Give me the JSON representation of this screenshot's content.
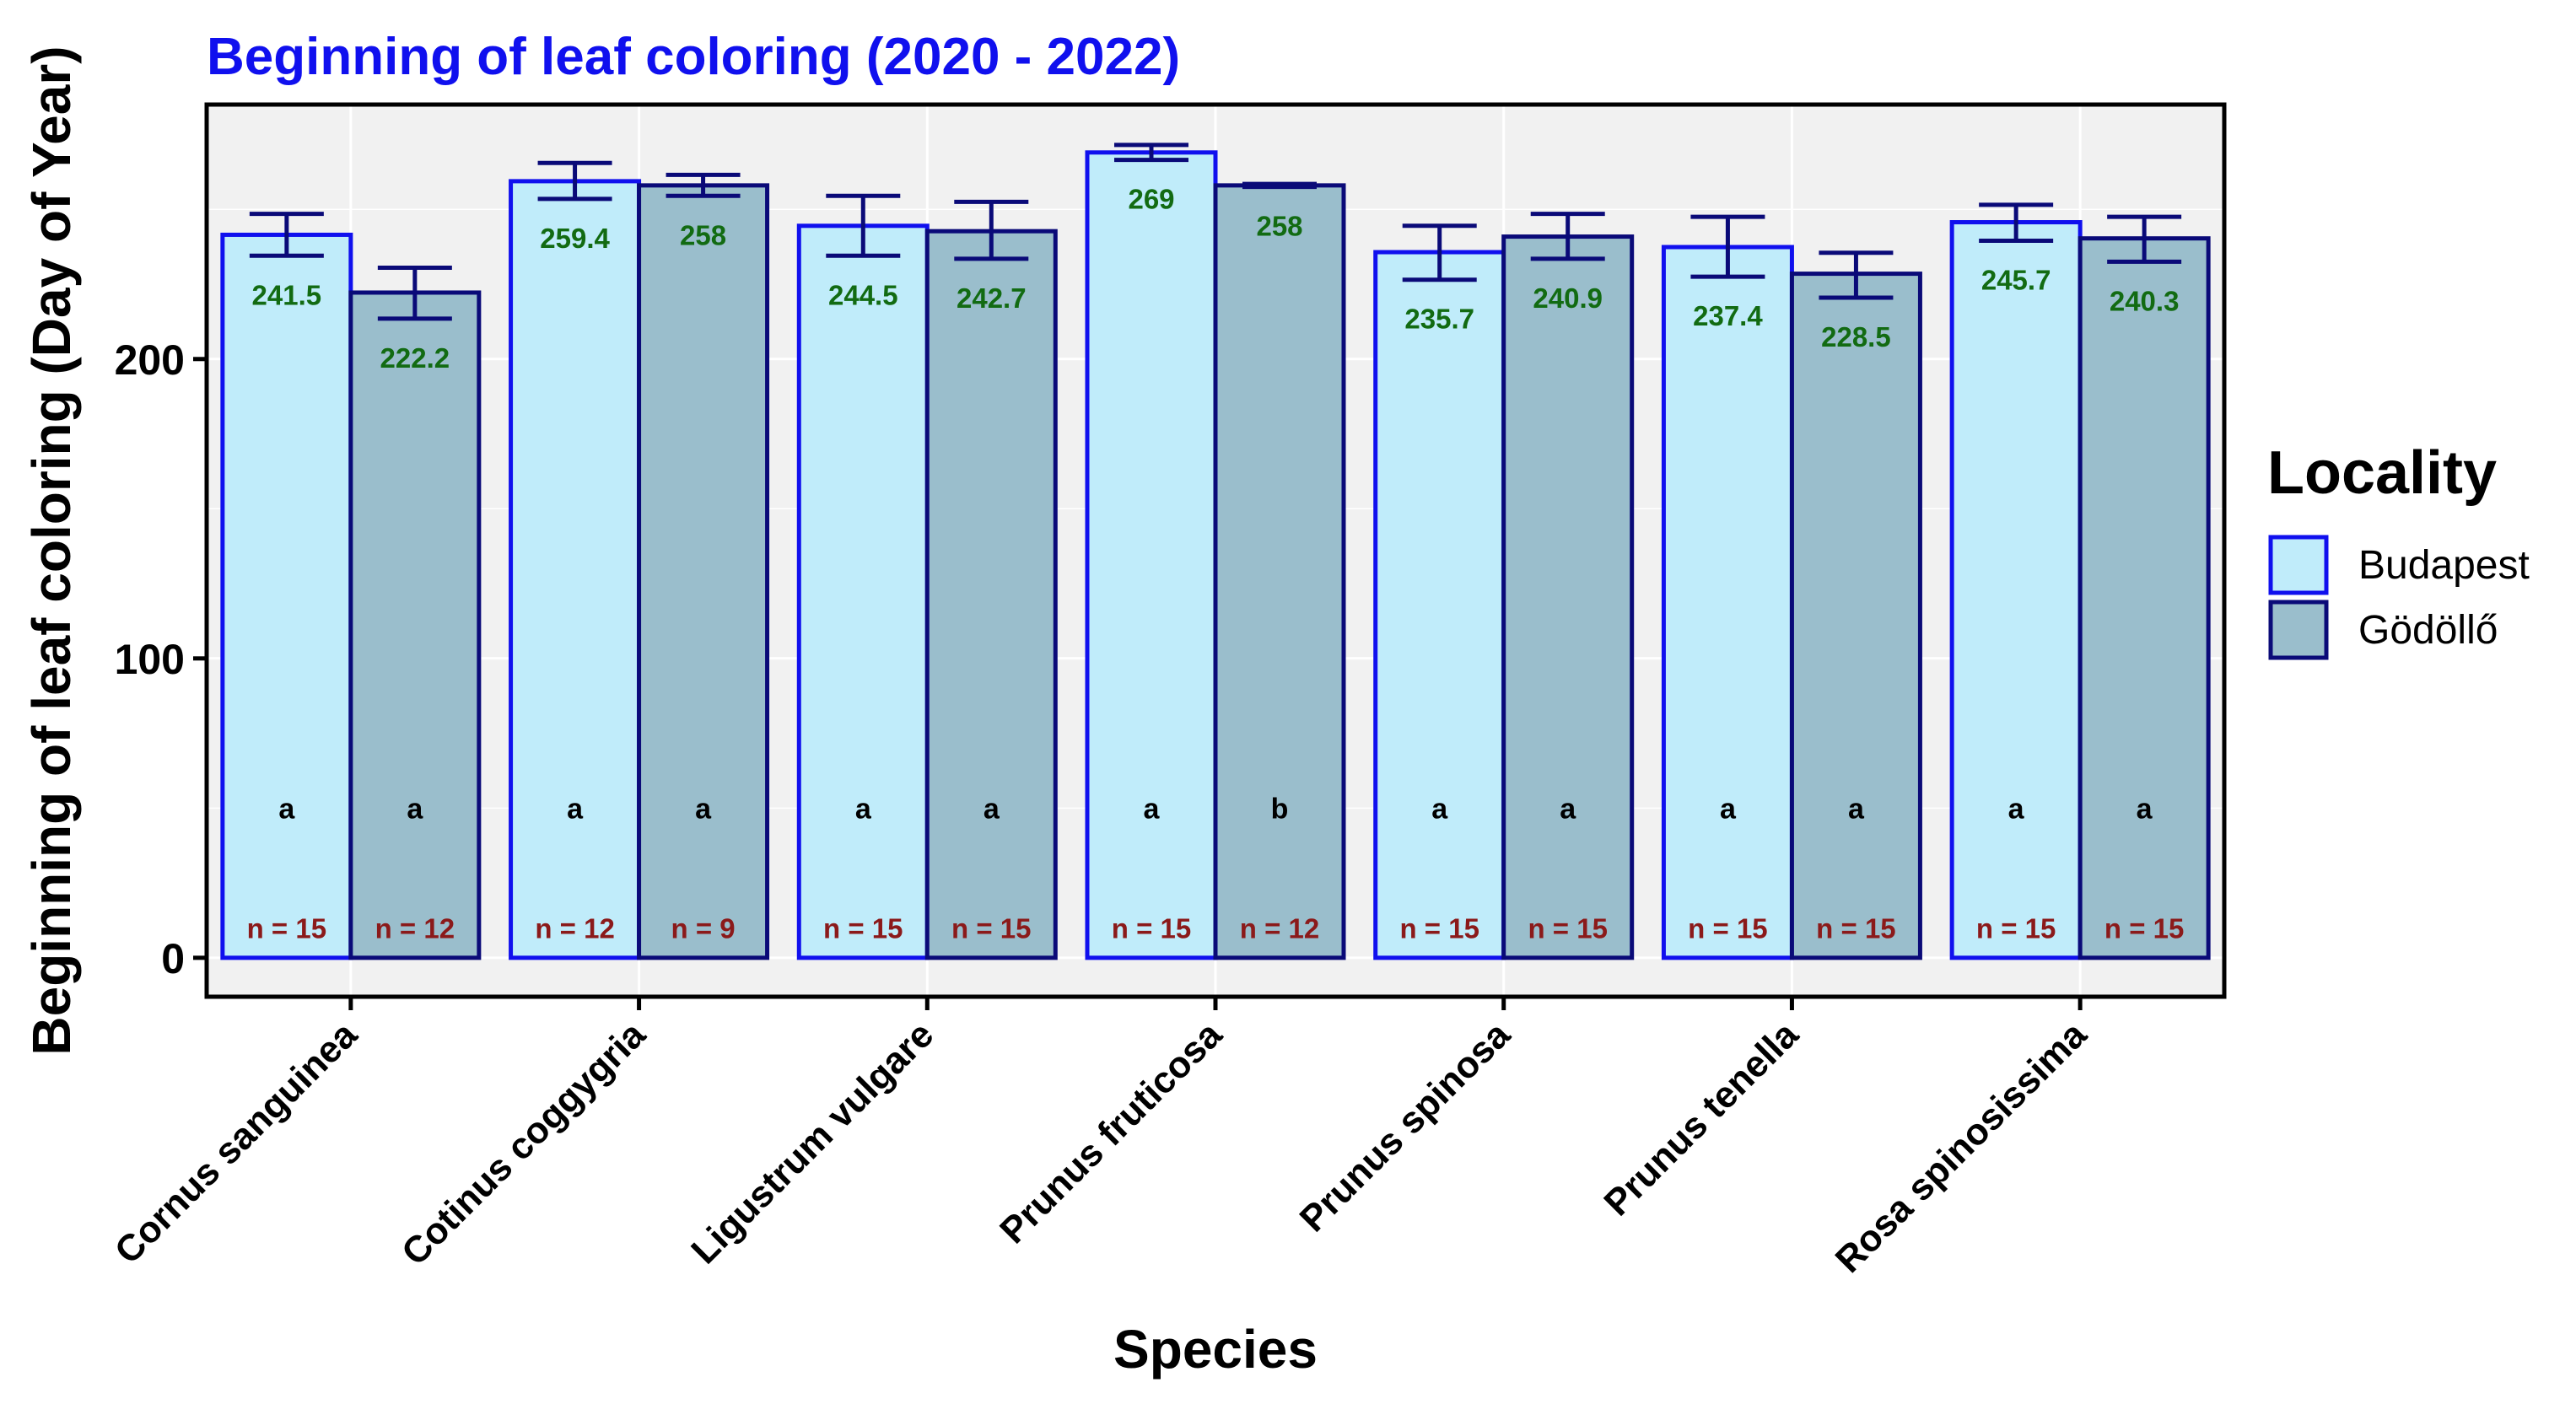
{
  "chart_data": {
    "type": "bar",
    "title": "Beginning of leaf coloring (2020 - 2022)",
    "xlabel": "Species",
    "ylabel": "Beginning of leaf coloring (Day of Year)",
    "ylim": [
      -13,
      285
    ],
    "yticks": [
      0,
      100,
      200
    ],
    "ytick_labels": [
      "0",
      "100",
      "200"
    ],
    "grid": true,
    "categories": [
      "Cornus sanguinea",
      "Cotinus coggygria",
      "Ligustrum vulgare",
      "Prunus fruticosa",
      "Prunus spinosa",
      "Prunus tenella",
      "Rosa spinosissima"
    ],
    "series": [
      {
        "name": "Budapest",
        "values": [
          241.5,
          259.4,
          244.5,
          269,
          235.7,
          237.4,
          245.7
        ],
        "value_labels": [
          "241.5",
          "259.4",
          "244.5",
          "269",
          "235.7",
          "237.4",
          "245.7"
        ],
        "error_low": [
          234.5,
          253.5,
          234.5,
          266.5,
          226.5,
          227.5,
          239.5
        ],
        "error_high": [
          248.5,
          265.5,
          254.5,
          271.5,
          244.5,
          247.5,
          251.5
        ],
        "letters": [
          "a",
          "a",
          "a",
          "a",
          "a",
          "a",
          "a"
        ],
        "n_labels": [
          "n = 15",
          "n = 12",
          "n = 15",
          "n = 15",
          "n = 15",
          "n = 15",
          "n = 15"
        ],
        "fill": "#c0ecfa",
        "stroke": "#1010ee"
      },
      {
        "name": "Gödöllő",
        "values": [
          222.2,
          258,
          242.7,
          258,
          240.9,
          228.5,
          240.3
        ],
        "value_labels": [
          "222.2",
          "258",
          "242.7",
          "258",
          "240.9",
          "228.5",
          "240.3"
        ],
        "error_low": [
          213.5,
          254.5,
          233.5,
          257.5,
          233.5,
          220.5,
          232.5
        ],
        "error_high": [
          230.5,
          261.5,
          252.5,
          258.5,
          248.5,
          235.5,
          247.5
        ],
        "letters": [
          "a",
          "a",
          "a",
          "b",
          "a",
          "a",
          "a"
        ],
        "n_labels": [
          "n = 12",
          "n = 9",
          "n = 15",
          "n = 12",
          "n = 15",
          "n = 15",
          "n = 15"
        ],
        "fill": "#9abecc",
        "stroke": "#0a0a78"
      }
    ],
    "legend": {
      "title": "Locality",
      "entries": [
        "Budapest",
        "Gödöllő"
      ],
      "position": "right"
    },
    "colors": {
      "title": "#1010ee",
      "panel_bg": "#f1f1f1",
      "grid": "#ffffff",
      "value_label": "#126b12",
      "n_label": "#8b1a1a",
      "error_bar": "#0a0a78"
    }
  }
}
